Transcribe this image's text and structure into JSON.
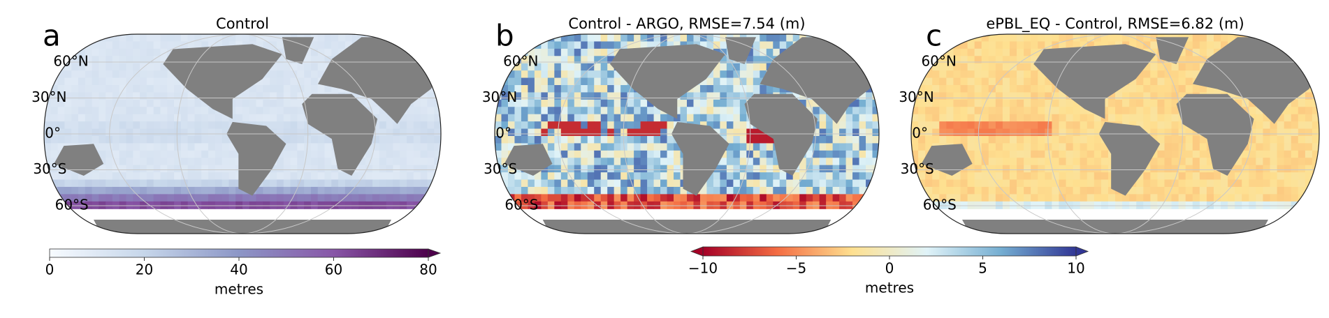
{
  "panels": [
    {
      "label": "a",
      "title": "Control",
      "lat_labels": [
        "60°N",
        "30°N",
        "0°",
        "30°S",
        "60°S"
      ]
    },
    {
      "label": "b",
      "title": "Control - ARGO, RMSE=7.54 (m)",
      "lat_labels": [
        "60°N",
        "30°N",
        "0°",
        "30°S",
        "60°S"
      ]
    },
    {
      "label": "c",
      "title": "ePBL_EQ - Control, RMSE=6.82 (m)",
      "lat_labels": [
        "60°N",
        "30°N",
        "0°",
        "30°S",
        "60°S"
      ]
    }
  ],
  "colorbars": [
    {
      "lim": [
        0,
        80
      ],
      "ticks": [
        0,
        20,
        40,
        60,
        80
      ],
      "label": "metres",
      "colors": [
        "#f7fbff",
        "#c6d6ea",
        "#8c96c6",
        "#8856a7",
        "#4d004b"
      ]
    },
    {
      "lim": [
        -10,
        10
      ],
      "ticks": [
        {
          "value": -10,
          "label": "−10"
        },
        {
          "value": -5,
          "label": "−5"
        },
        0,
        5,
        10
      ],
      "label": "metres",
      "colors": [
        "#a50026",
        "#f46d43",
        "#fee090",
        "#e0f3f8",
        "#74add1",
        "#313695"
      ]
    }
  ]
}
